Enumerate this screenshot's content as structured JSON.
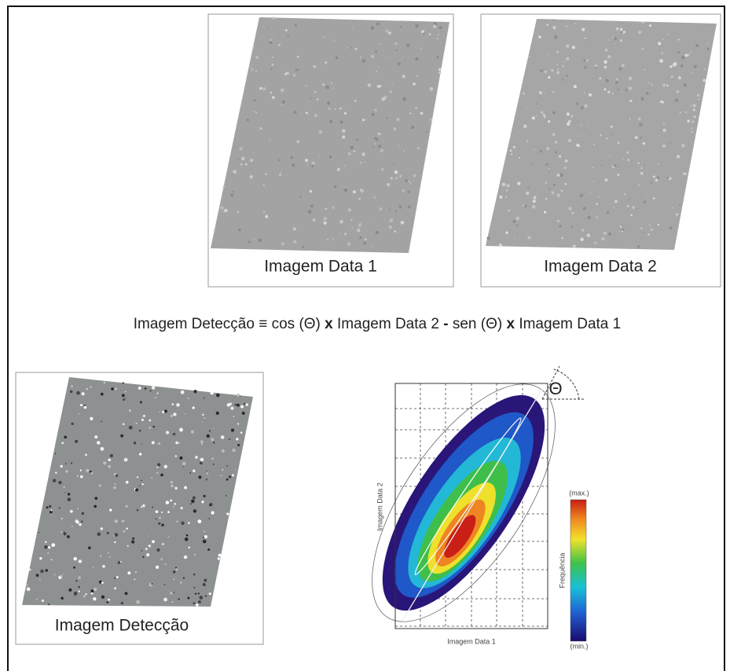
{
  "panels": {
    "image_1": {
      "caption": "Imagem Data 1"
    },
    "image_2": {
      "caption": "Imagem Data 2"
    },
    "detection": {
      "caption": "Imagem Detecção"
    }
  },
  "formula": {
    "lhs": "Imagem Detecção",
    "equiv": "≡",
    "term_1": "cos (Θ)",
    "op_1": "x",
    "term_2": "Imagem Data 2",
    "minus": "-",
    "term_3": "sen (Θ)",
    "op_2": "x",
    "term_4": "Imagem Data 1"
  },
  "scatter": {
    "x_label": "Imagem Data 1",
    "y_label": "Imagem Data 2",
    "angle_symbol": "Θ",
    "colorbar_label": "Frequência",
    "colorbar_max": "(max.)",
    "colorbar_min": "(min.)"
  }
}
